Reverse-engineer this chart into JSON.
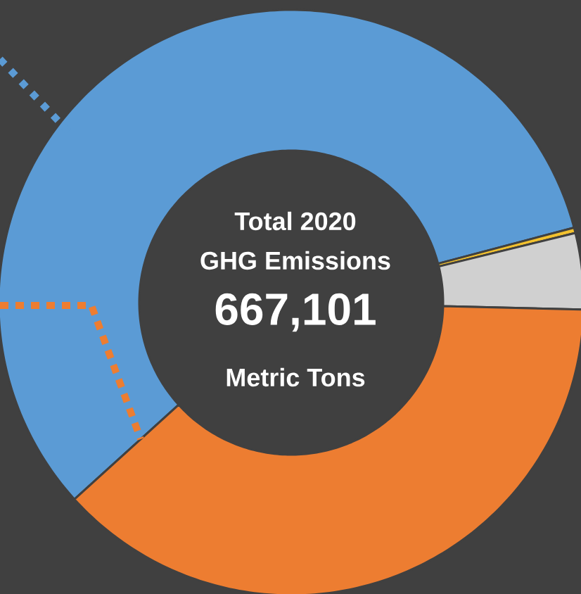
{
  "chart_data": {
    "type": "donut",
    "categories": [
      null,
      null,
      null,
      null
    ],
    "values": [
      57.6,
      0.3,
      4.2,
      37.9
    ],
    "colors": [
      "#5b9bd5",
      "#f2c12e",
      "#d0d0d0",
      "#ed7d31"
    ],
    "annotations": [
      "Total 2020",
      "GHG Emissions",
      "667,101",
      "Metric Tons"
    ]
  }
}
